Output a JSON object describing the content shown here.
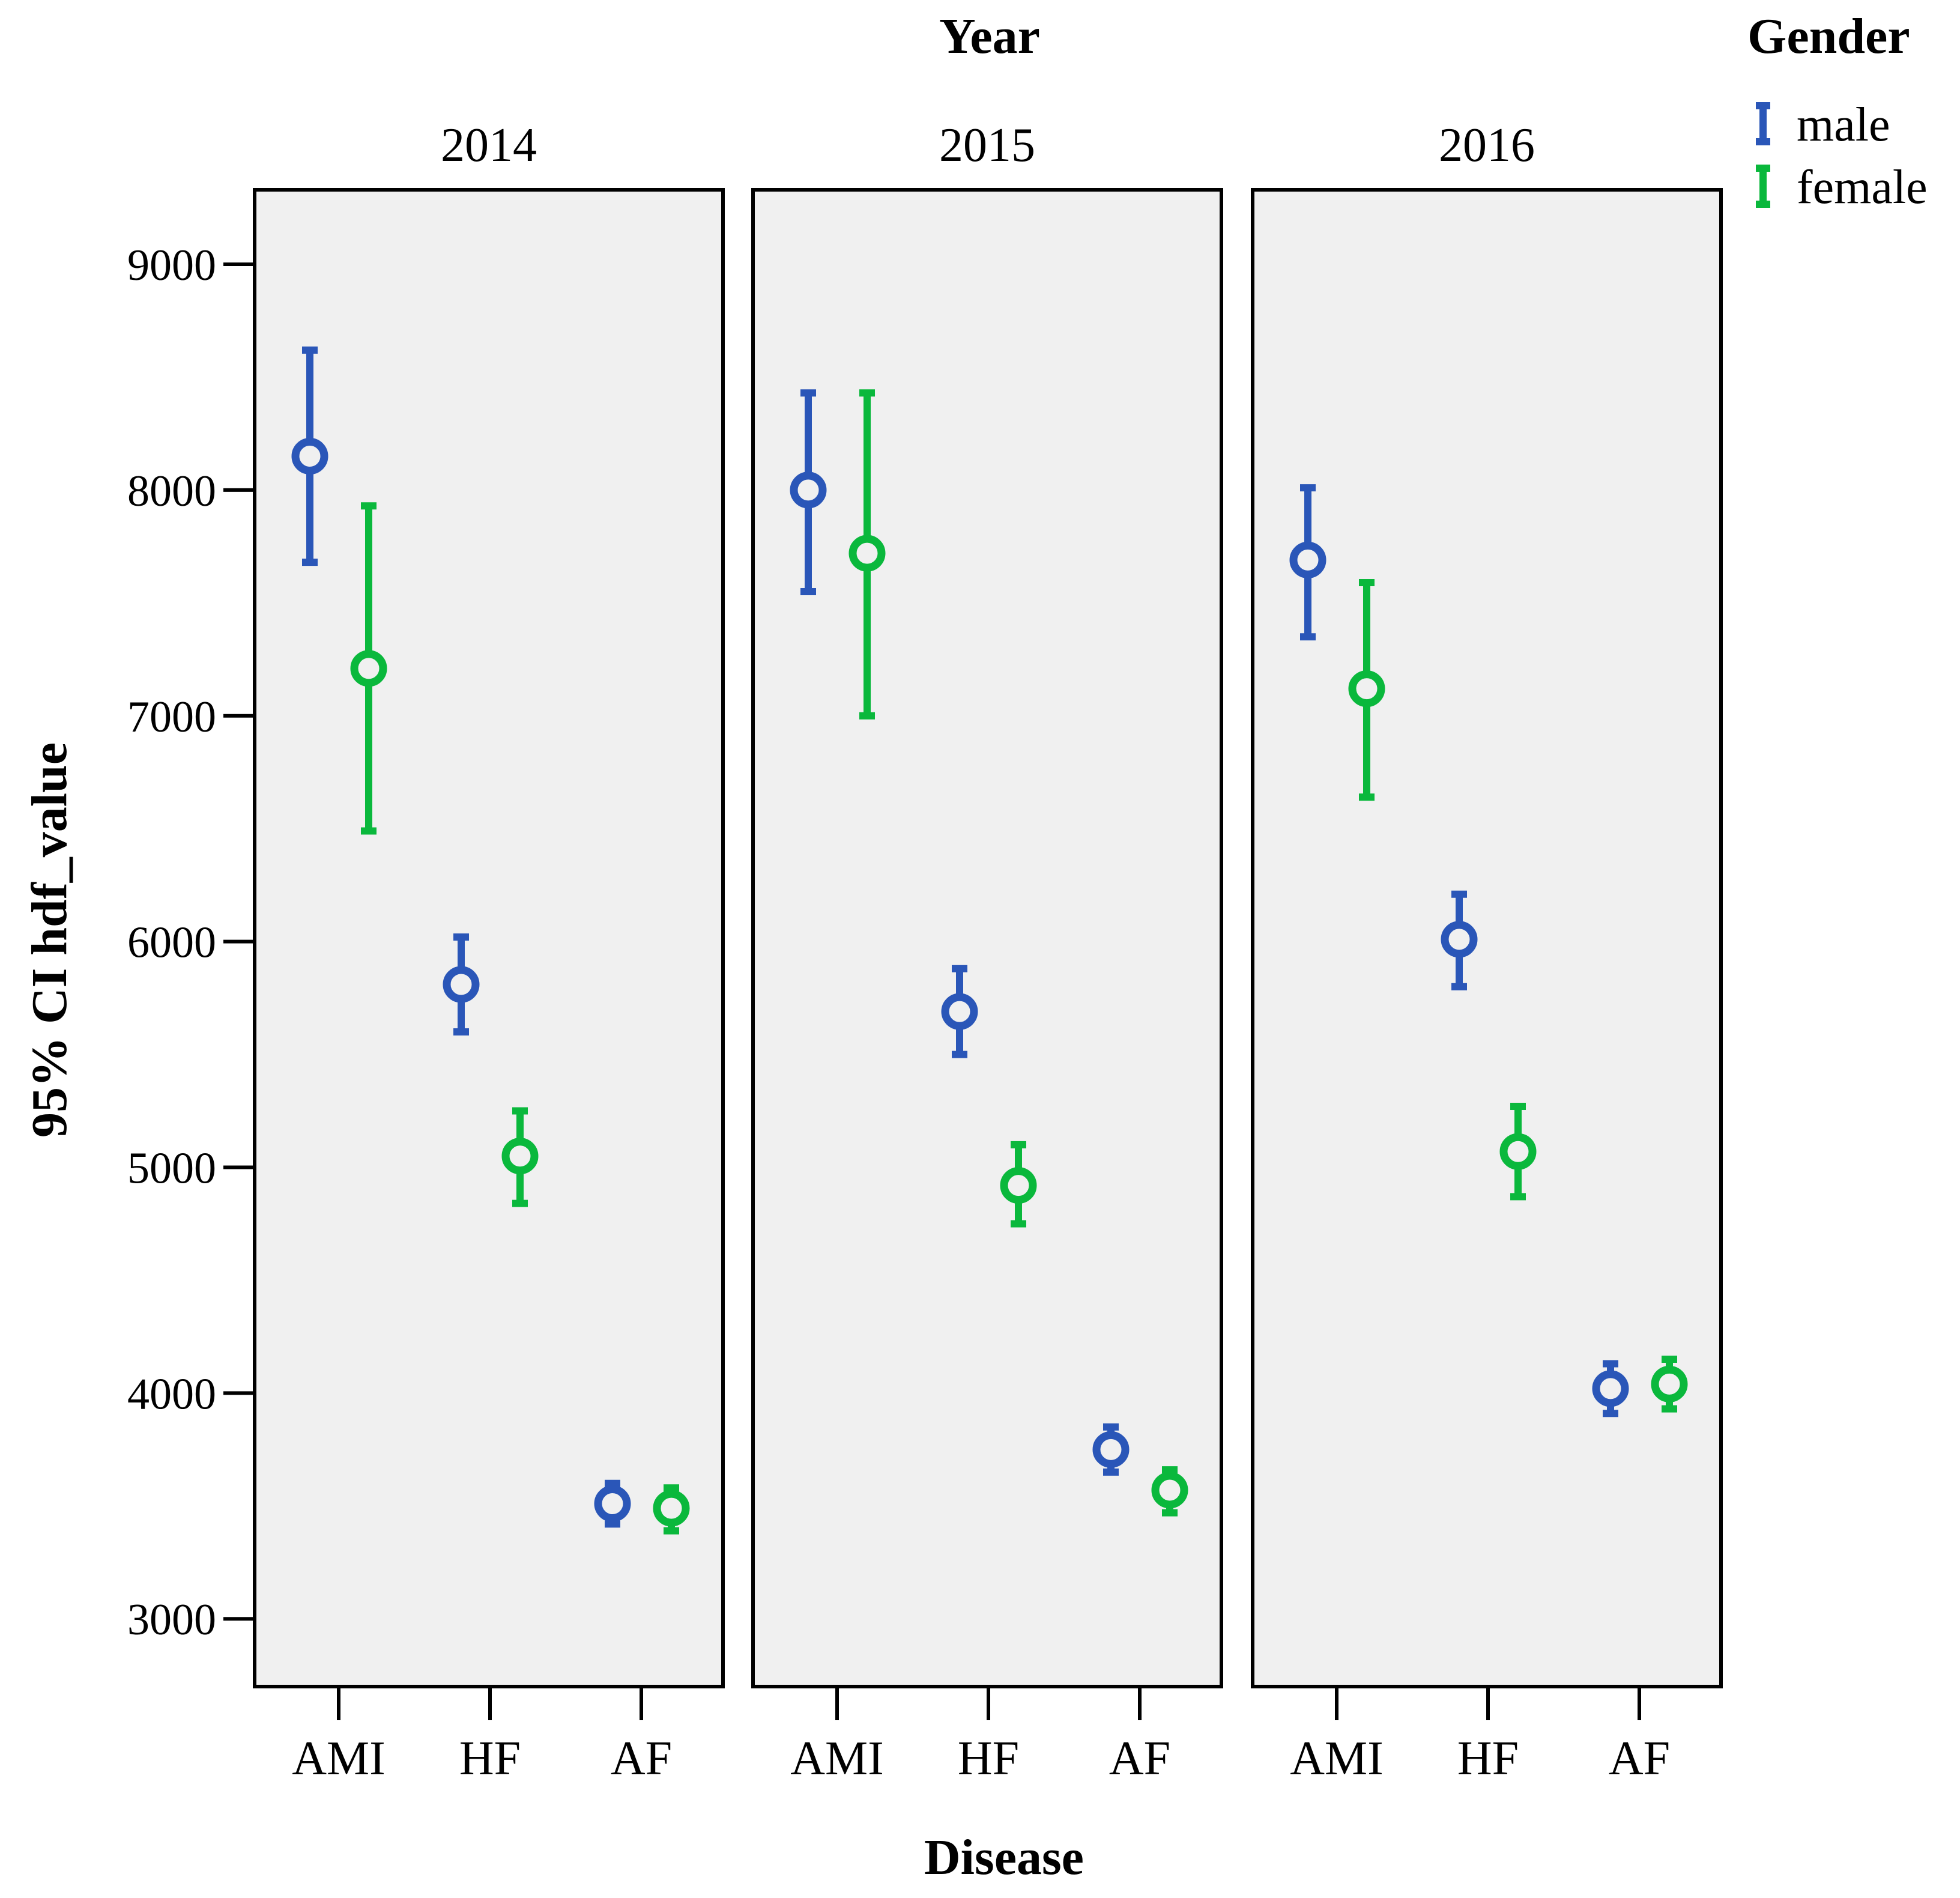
{
  "chart_data": {
    "type": "error-bar",
    "title": "",
    "panel_title": "Year",
    "xlabel": "Disease",
    "ylabel": "95% CI hdf_value",
    "ylim": [
      2700,
      9330
    ],
    "yticks": [
      3000,
      4000,
      5000,
      6000,
      7000,
      8000,
      9000
    ],
    "legend": {
      "title": "Gender",
      "position": "top-right",
      "entries": [
        "male",
        "female"
      ]
    },
    "categories": [
      "AMI",
      "HF",
      "AF"
    ],
    "series_colors": {
      "male": "#2a56b8",
      "female": "#0ab83c"
    },
    "panels": [
      {
        "label": "2014",
        "series": [
          {
            "name": "male",
            "mean": [
              8150,
              5810,
              3510
            ],
            "low": [
              7680,
              5600,
              3420
            ],
            "high": [
              8620,
              6020,
              3600
            ]
          },
          {
            "name": "female",
            "mean": [
              7210,
              5050,
              3490
            ],
            "low": [
              6490,
              4840,
              3390
            ],
            "high": [
              7930,
              5250,
              3580
            ]
          }
        ]
      },
      {
        "label": "2015",
        "series": [
          {
            "name": "male",
            "mean": [
              8000,
              5690,
              3750
            ],
            "low": [
              7550,
              5500,
              3650
            ],
            "high": [
              8430,
              5880,
              3850
            ]
          },
          {
            "name": "female",
            "mean": [
              7720,
              4920,
              3570
            ],
            "low": [
              7000,
              4750,
              3470
            ],
            "high": [
              8430,
              5100,
              3660
            ]
          }
        ]
      },
      {
        "label": "2016",
        "series": [
          {
            "name": "male",
            "mean": [
              7690,
              6010,
              4020
            ],
            "low": [
              7350,
              5800,
              3910
            ],
            "high": [
              8010,
              6210,
              4130
            ]
          },
          {
            "name": "female",
            "mean": [
              7120,
              5070,
              4040
            ],
            "low": [
              6640,
              4870,
              3930
            ],
            "high": [
              7590,
              5270,
              4150
            ]
          }
        ]
      }
    ]
  }
}
